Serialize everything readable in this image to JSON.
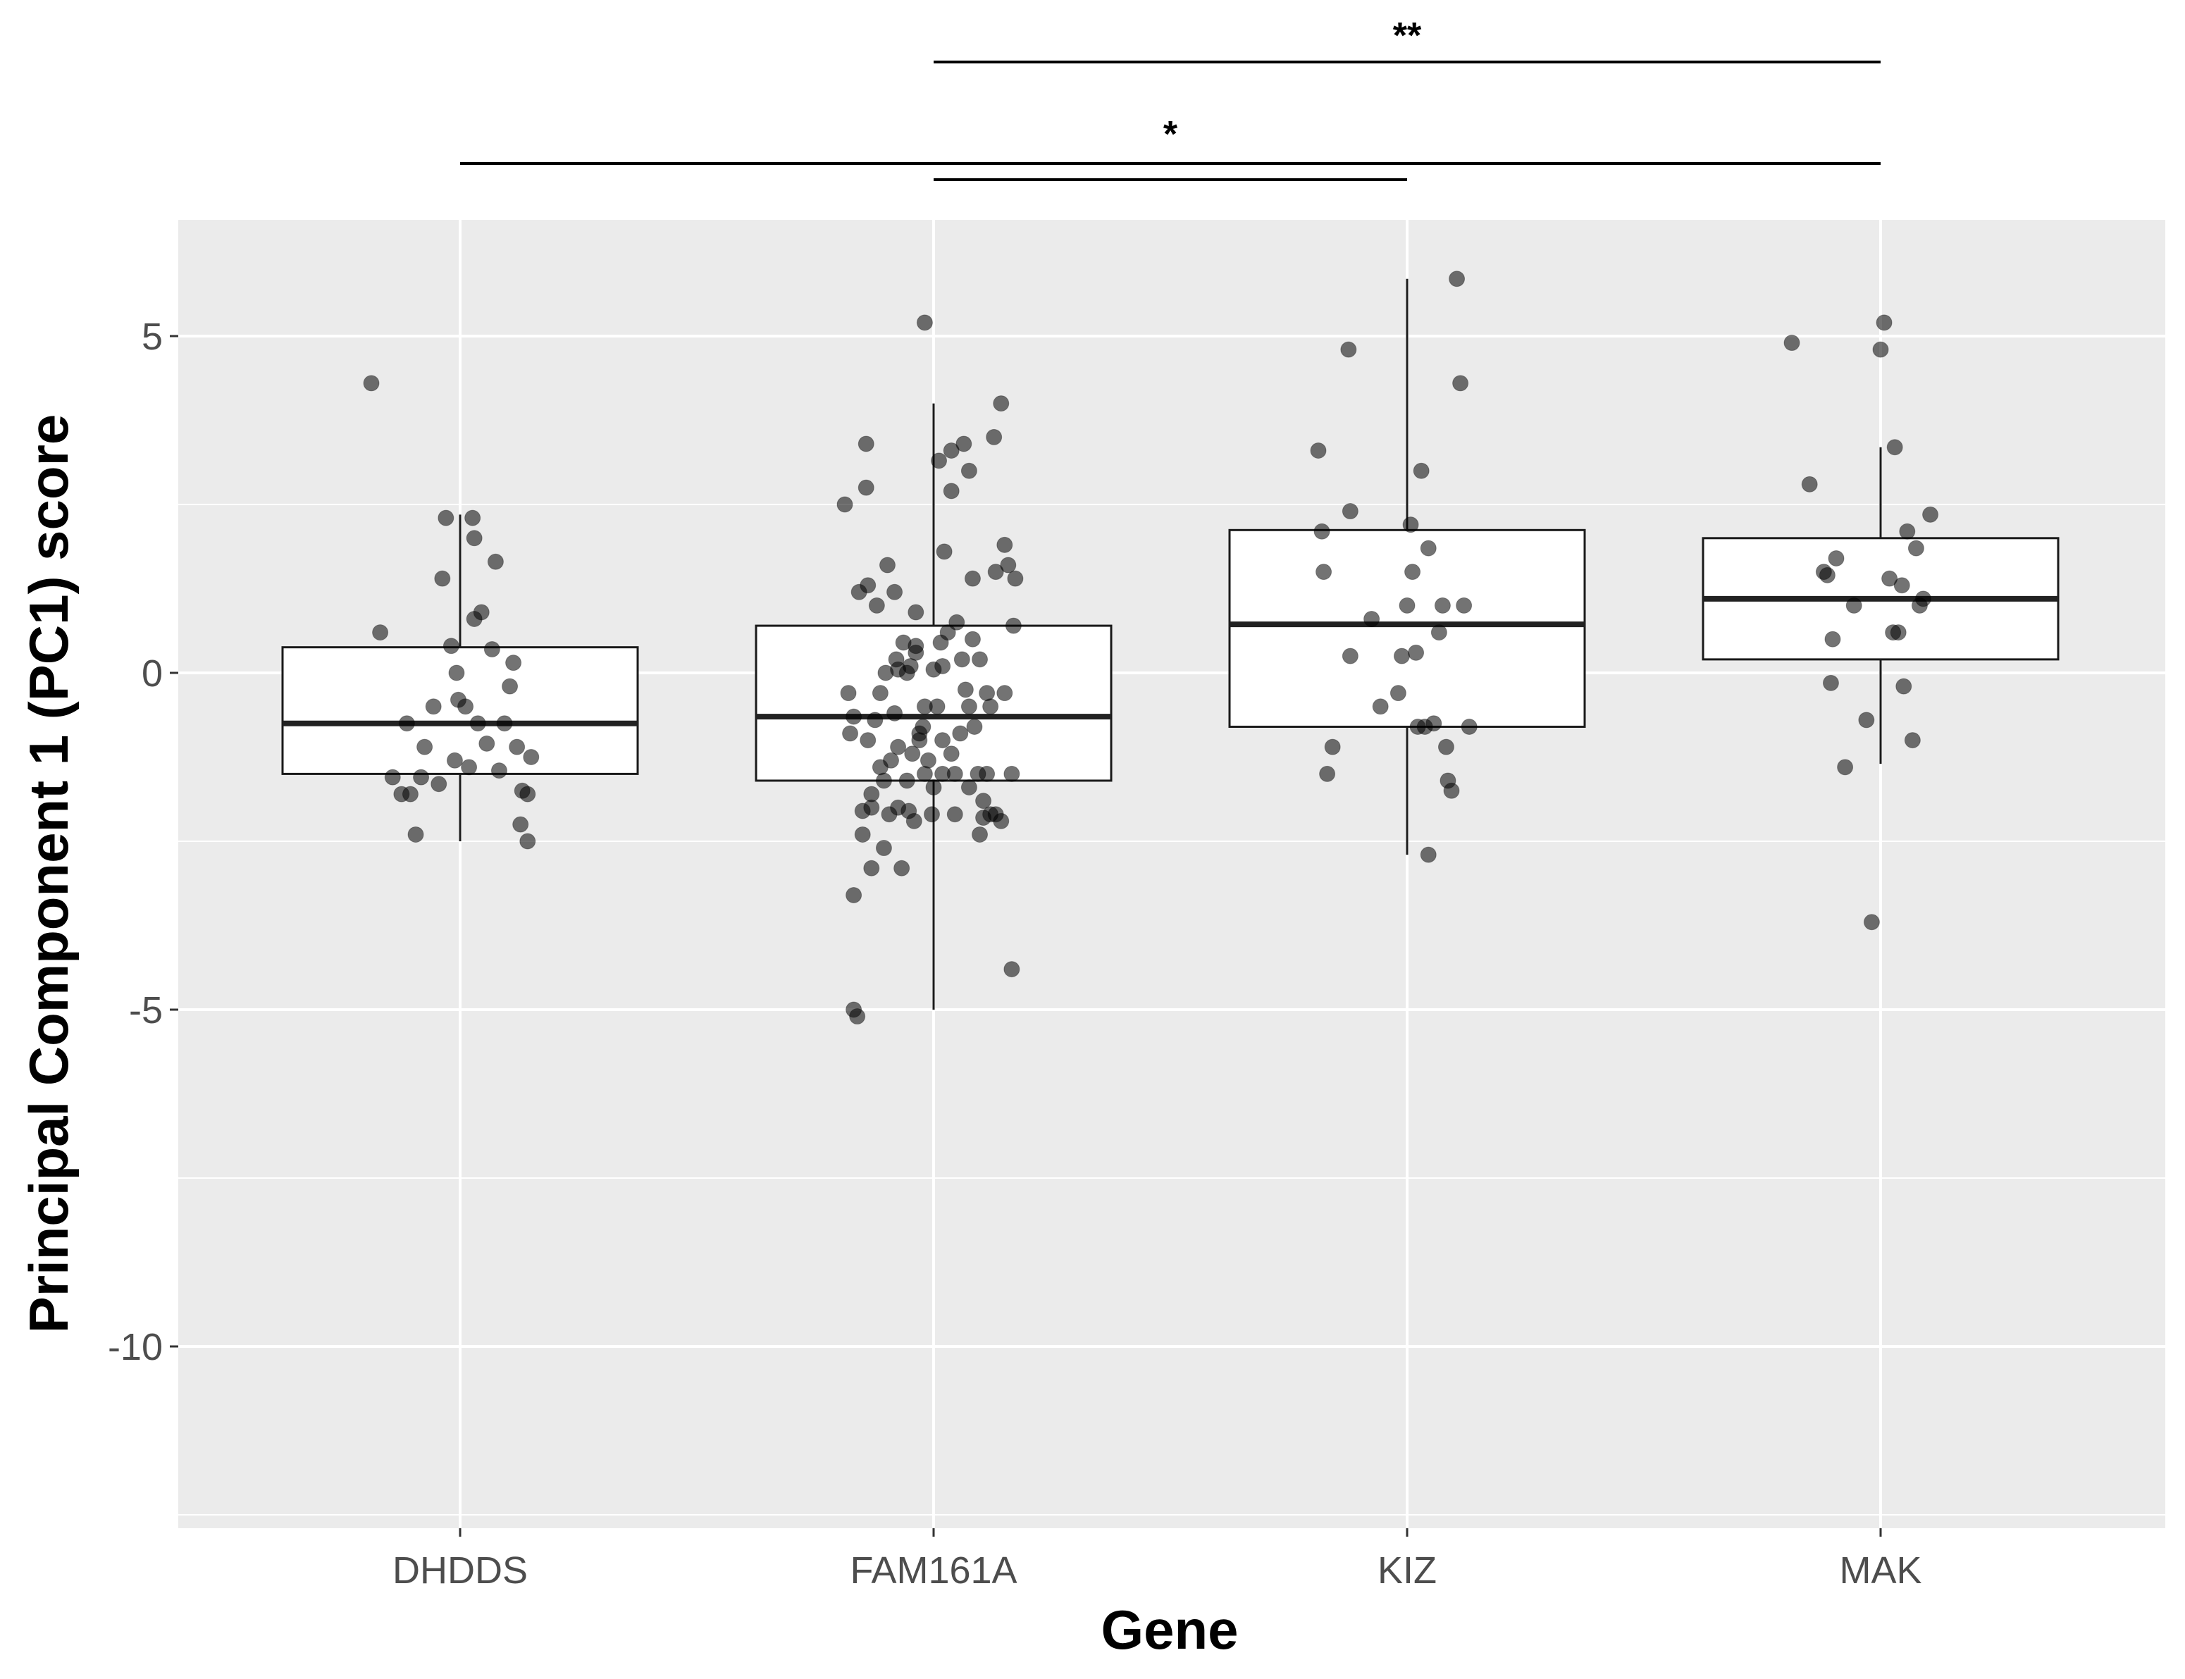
{
  "chart_data": {
    "type": "box",
    "xlabel": "Gene",
    "ylabel": "Principal Component 1 (PC1) score",
    "categories": [
      "DHDDS",
      "FAM161A",
      "KIZ",
      "MAK"
    ],
    "y_ticks": [
      5,
      0,
      -5,
      -10
    ],
    "y_tick_labels": [
      "5",
      "0",
      "-5",
      "-10"
    ],
    "ylim": [
      -12.5,
      6.8
    ],
    "grid": true,
    "legend": "none",
    "boxes": [
      {
        "category": "DHDDS",
        "q1": -1.5,
        "median": -0.75,
        "q3": 0.38,
        "whisker_low": -2.5,
        "whisker_high": 2.35
      },
      {
        "category": "FAM161A",
        "q1": -1.6,
        "median": -0.65,
        "q3": 0.7,
        "whisker_low": -5.0,
        "whisker_high": 4.0
      },
      {
        "category": "KIZ",
        "q1": -0.8,
        "median": 0.72,
        "q3": 2.12,
        "whisker_low": -2.7,
        "whisker_high": 5.85
      },
      {
        "category": "MAK",
        "q1": 0.2,
        "median": 1.1,
        "q3": 2.0,
        "whisker_low": -1.35,
        "whisker_high": 3.35
      }
    ],
    "points": {
      "DHDDS": [
        [
          -0.5,
          4.3
        ],
        [
          -0.45,
          0.6
        ],
        [
          -0.38,
          -1.55
        ],
        [
          -0.33,
          -1.8
        ],
        [
          -0.3,
          -0.75
        ],
        [
          -0.28,
          -1.8
        ],
        [
          -0.25,
          -2.4
        ],
        [
          -0.22,
          -1.55
        ],
        [
          -0.2,
          -1.1
        ],
        [
          -0.15,
          -0.5
        ],
        [
          -0.12,
          -1.65
        ],
        [
          -0.1,
          1.4
        ],
        [
          -0.08,
          2.3
        ],
        [
          -0.05,
          0.4
        ],
        [
          -0.03,
          -1.3
        ],
        [
          -0.02,
          0.0
        ],
        [
          -0.01,
          -0.4
        ],
        [
          0.03,
          -0.5
        ],
        [
          0.05,
          -1.4
        ],
        [
          0.07,
          2.3
        ],
        [
          0.08,
          0.8
        ],
        [
          0.08,
          2.0
        ],
        [
          0.1,
          -0.75
        ],
        [
          0.12,
          0.9
        ],
        [
          0.15,
          -1.05
        ],
        [
          0.18,
          0.35
        ],
        [
          0.2,
          1.65
        ],
        [
          0.22,
          -1.45
        ],
        [
          0.25,
          -0.75
        ],
        [
          0.28,
          -0.2
        ],
        [
          0.3,
          0.15
        ],
        [
          0.32,
          -1.1
        ],
        [
          0.34,
          -2.25
        ],
        [
          0.35,
          -1.75
        ],
        [
          0.38,
          -1.8
        ],
        [
          0.38,
          -2.5
        ],
        [
          0.4,
          -1.25
        ]
      ],
      "FAM161A": [
        [
          -0.5,
          2.5
        ],
        [
          -0.48,
          -0.3
        ],
        [
          -0.47,
          -0.9
        ],
        [
          -0.45,
          -0.65
        ],
        [
          -0.45,
          -3.3
        ],
        [
          -0.45,
          -5.0
        ],
        [
          -0.43,
          -5.1
        ],
        [
          -0.42,
          1.2
        ],
        [
          -0.4,
          -2.05
        ],
        [
          -0.4,
          -2.4
        ],
        [
          -0.38,
          2.75
        ],
        [
          -0.38,
          3.4
        ],
        [
          -0.37,
          1.3
        ],
        [
          -0.37,
          -1.0
        ],
        [
          -0.35,
          -2.0
        ],
        [
          -0.35,
          -2.9
        ],
        [
          -0.35,
          -1.8
        ],
        [
          -0.33,
          -0.7
        ],
        [
          -0.32,
          1.0
        ],
        [
          -0.3,
          -0.3
        ],
        [
          -0.3,
          -1.4
        ],
        [
          -0.28,
          -1.6
        ],
        [
          -0.28,
          -2.6
        ],
        [
          -0.27,
          0.0
        ],
        [
          -0.26,
          1.6
        ],
        [
          -0.25,
          -2.1
        ],
        [
          -0.24,
          -1.3
        ],
        [
          -0.22,
          -0.6
        ],
        [
          -0.21,
          0.2
        ],
        [
          -0.2,
          0.05
        ],
        [
          -0.2,
          -1.1
        ],
        [
          -0.2,
          -2.0
        ],
        [
          -0.18,
          -2.9
        ],
        [
          -0.17,
          0.45
        ],
        [
          -0.15,
          -1.6
        ],
        [
          -0.15,
          0.0
        ],
        [
          -0.13,
          0.1
        ],
        [
          -0.12,
          -1.2
        ],
        [
          -0.11,
          -2.2
        ],
        [
          -0.1,
          0.9
        ],
        [
          -0.1,
          0.3
        ],
        [
          -0.1,
          0.4
        ],
        [
          -0.08,
          -0.9
        ],
        [
          -0.08,
          -1.0
        ],
        [
          -0.06,
          -0.8
        ],
        [
          -0.05,
          -0.5
        ],
        [
          -0.05,
          -1.5
        ],
        [
          -0.03,
          -1.3
        ],
        [
          -0.01,
          -2.1
        ],
        [
          0.0,
          -1.7
        ],
        [
          0.0,
          0.05
        ],
        [
          0.02,
          -0.5
        ],
        [
          0.03,
          3.15
        ],
        [
          0.04,
          0.45
        ],
        [
          0.05,
          0.1
        ],
        [
          0.05,
          -1.5
        ],
        [
          0.06,
          1.8
        ],
        [
          0.08,
          0.6
        ],
        [
          0.1,
          3.3
        ],
        [
          0.1,
          2.7
        ],
        [
          0.12,
          -1.5
        ],
        [
          0.13,
          0.75
        ],
        [
          0.15,
          -0.9
        ],
        [
          0.16,
          0.2
        ],
        [
          0.17,
          3.4
        ],
        [
          0.18,
          -0.25
        ],
        [
          0.2,
          -1.7
        ],
        [
          0.2,
          -0.5
        ],
        [
          0.22,
          0.5
        ],
        [
          0.22,
          1.4
        ],
        [
          0.23,
          -0.8
        ],
        [
          0.25,
          -1.5
        ],
        [
          0.26,
          0.2
        ],
        [
          0.26,
          -2.4
        ],
        [
          0.28,
          -1.9
        ],
        [
          0.3,
          -0.3
        ],
        [
          0.3,
          -1.5
        ],
        [
          0.32,
          -0.5
        ],
        [
          0.32,
          -2.1
        ],
        [
          0.34,
          3.5
        ],
        [
          0.35,
          1.5
        ],
        [
          0.38,
          -2.2
        ],
        [
          0.38,
          4.0
        ],
        [
          0.4,
          1.9
        ],
        [
          0.4,
          -0.3
        ],
        [
          0.42,
          1.6
        ],
        [
          0.44,
          -1.5
        ],
        [
          0.44,
          -4.4
        ],
        [
          0.45,
          0.7
        ],
        [
          0.46,
          1.4
        ],
        [
          -0.22,
          1.2
        ],
        [
          0.2,
          3.0
        ],
        [
          -0.05,
          5.2
        ],
        [
          0.12,
          -2.1
        ],
        [
          0.28,
          -2.15
        ],
        [
          0.35,
          -2.1
        ],
        [
          0.1,
          -1.2
        ],
        [
          -0.14,
          -2.05
        ],
        [
          0.05,
          -1.0
        ]
      ],
      "KIZ": [
        [
          -0.5,
          3.3
        ],
        [
          -0.48,
          2.1
        ],
        [
          -0.47,
          1.5
        ],
        [
          -0.45,
          -1.5
        ],
        [
          -0.42,
          -1.1
        ],
        [
          -0.33,
          4.8
        ],
        [
          -0.32,
          2.4
        ],
        [
          -0.32,
          0.25
        ],
        [
          -0.2,
          0.8
        ],
        [
          -0.15,
          -0.5
        ],
        [
          -0.05,
          -0.3
        ],
        [
          -0.03,
          0.25
        ],
        [
          0.0,
          1.0
        ],
        [
          0.02,
          2.2
        ],
        [
          0.03,
          1.5
        ],
        [
          0.05,
          0.3
        ],
        [
          0.06,
          -0.8
        ],
        [
          0.08,
          3.0
        ],
        [
          0.1,
          -0.8
        ],
        [
          0.12,
          1.85
        ],
        [
          0.12,
          -2.7
        ],
        [
          0.15,
          -0.75
        ],
        [
          0.18,
          0.6
        ],
        [
          0.2,
          1.0
        ],
        [
          0.22,
          -1.1
        ],
        [
          0.23,
          -1.6
        ],
        [
          0.25,
          -1.75
        ],
        [
          0.28,
          5.85
        ],
        [
          0.3,
          4.3
        ],
        [
          0.32,
          1.0
        ],
        [
          0.35,
          -0.8
        ]
      ],
      "MAK": [
        [
          -0.5,
          4.9
        ],
        [
          -0.4,
          2.8
        ],
        [
          -0.32,
          1.5
        ],
        [
          -0.3,
          1.45
        ],
        [
          -0.28,
          -0.15
        ],
        [
          -0.27,
          0.5
        ],
        [
          -0.25,
          1.7
        ],
        [
          -0.2,
          -1.4
        ],
        [
          -0.15,
          1.0
        ],
        [
          -0.08,
          -0.7
        ],
        [
          -0.05,
          -3.7
        ],
        [
          0.0,
          4.8
        ],
        [
          0.02,
          5.2
        ],
        [
          0.05,
          1.4
        ],
        [
          0.07,
          0.6
        ],
        [
          0.08,
          3.35
        ],
        [
          0.1,
          0.6
        ],
        [
          0.12,
          1.3
        ],
        [
          0.13,
          -0.2
        ],
        [
          0.15,
          2.1
        ],
        [
          0.18,
          -1.0
        ],
        [
          0.2,
          1.85
        ],
        [
          0.22,
          1.0
        ],
        [
          0.24,
          1.1
        ],
        [
          0.28,
          2.35
        ]
      ]
    },
    "significance": [
      {
        "label": "**",
        "from": "FAM161A",
        "to": "MAK"
      },
      {
        "label": "*",
        "from": "DHDDS",
        "to": "MAK"
      },
      {
        "label": "",
        "from": "FAM161A",
        "to": "KIZ"
      }
    ]
  }
}
